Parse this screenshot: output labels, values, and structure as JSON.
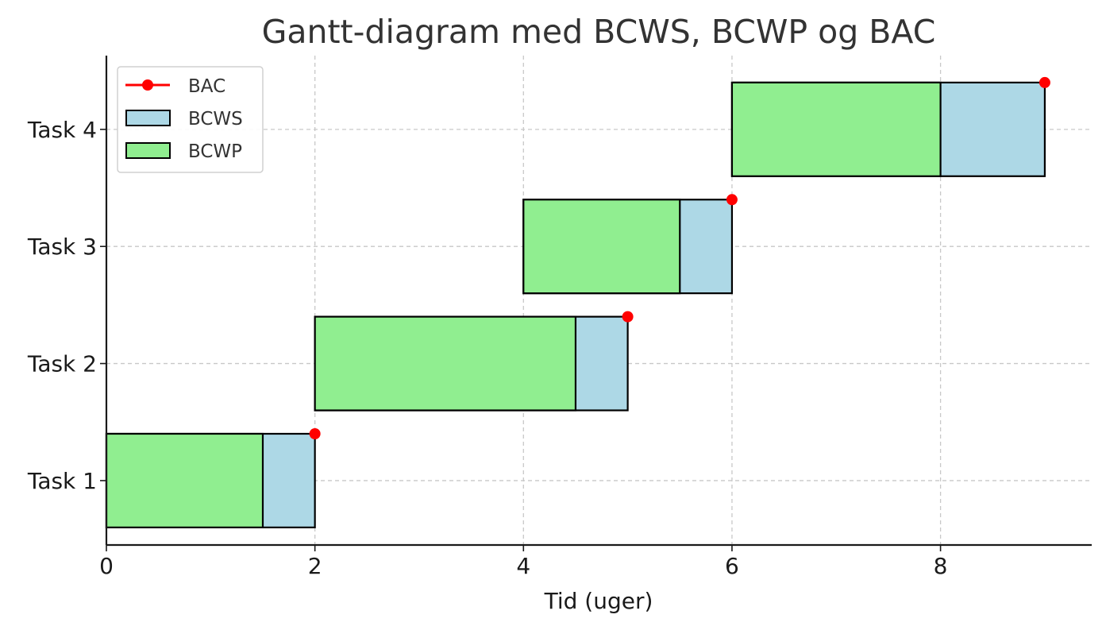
{
  "chart_data": {
    "type": "bar",
    "orientation": "horizontal",
    "title": "Gantt-diagram med BCWS, BCWP og BAC",
    "xlabel": "Tid (uger)",
    "ylabel": "",
    "xlim": [
      0,
      9.45
    ],
    "xticks": [
      0,
      2,
      4,
      6,
      8
    ],
    "grid": true,
    "legend_position": "top-left",
    "categories": [
      "Task 1",
      "Task 2",
      "Task 3",
      "Task 4"
    ],
    "series": [
      {
        "name": "BCWS",
        "color": "#add8e6",
        "bars": [
          {
            "task": "Task 1",
            "start": 0,
            "end": 2
          },
          {
            "task": "Task 2",
            "start": 2,
            "end": 5
          },
          {
            "task": "Task 3",
            "start": 4,
            "end": 6
          },
          {
            "task": "Task 4",
            "start": 6,
            "end": 9
          }
        ]
      },
      {
        "name": "BCWP",
        "color": "#90ee90",
        "bars": [
          {
            "task": "Task 1",
            "start": 0,
            "end": 1.5
          },
          {
            "task": "Task 2",
            "start": 2,
            "end": 4.5
          },
          {
            "task": "Task 3",
            "start": 4,
            "end": 5.5
          },
          {
            "task": "Task 4",
            "start": 6,
            "end": 8
          }
        ]
      },
      {
        "name": "BAC",
        "color": "#ff0000",
        "markers": [
          {
            "task": "Task 1",
            "value": 2
          },
          {
            "task": "Task 2",
            "value": 5
          },
          {
            "task": "Task 3",
            "value": 6
          },
          {
            "task": "Task 4",
            "value": 9
          }
        ]
      }
    ],
    "legend": [
      "BAC",
      "BCWS",
      "BCWP"
    ]
  }
}
